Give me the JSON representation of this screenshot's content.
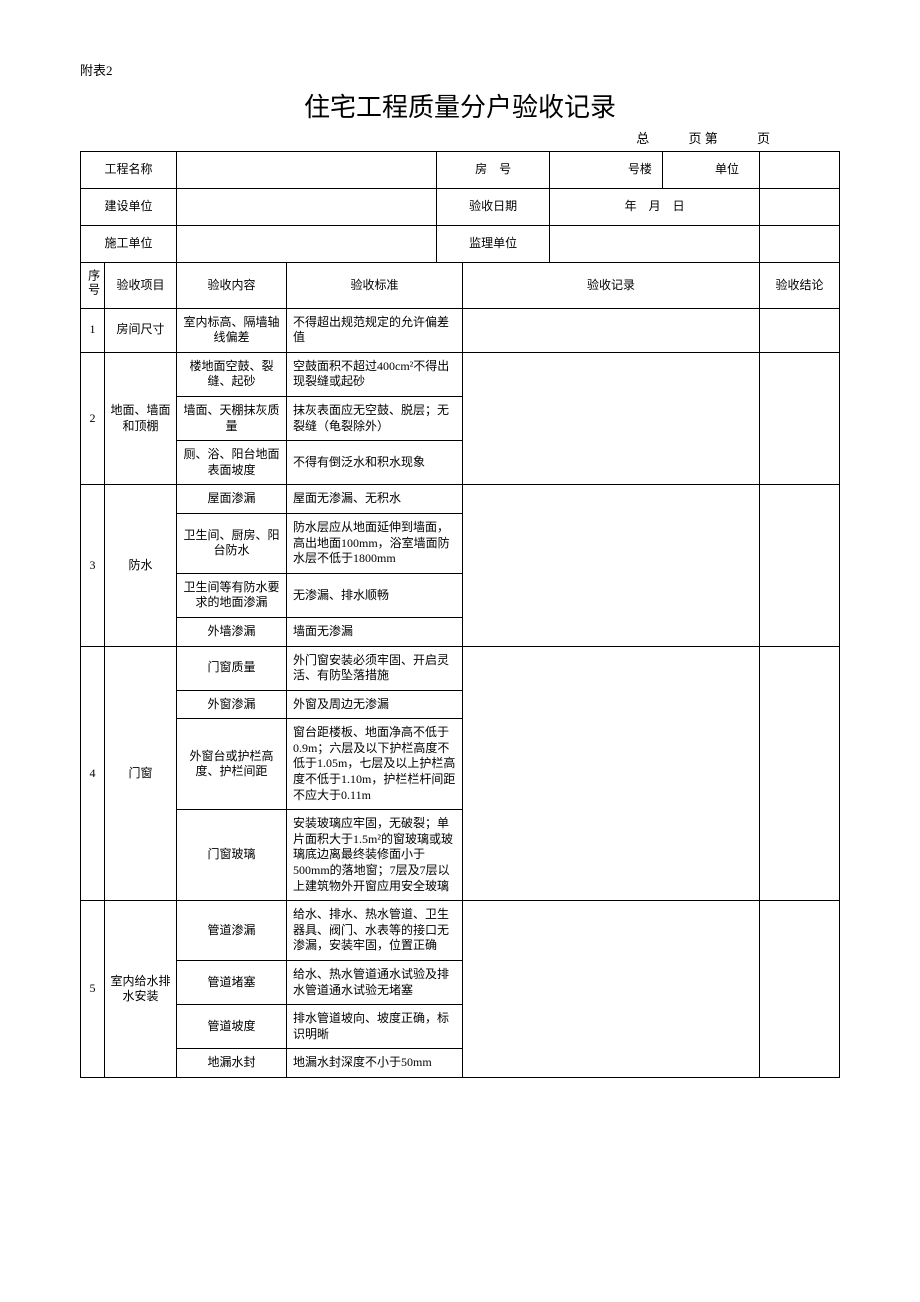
{
  "appendix": "附表2",
  "title": "住宅工程质量分户验收记录",
  "pagination": {
    "total_label": "总",
    "page_label": "页 第",
    "page_suffix": "页"
  },
  "header": {
    "project_name_label": "工程名称",
    "room_no_label": "房　号",
    "building_label": "号楼",
    "unit_label": "单位",
    "builder_label": "建设单位",
    "check_date_label": "验收日期",
    "date_value": "年　月　日",
    "contractor_label": "施工单位",
    "supervisor_label": "监理单位"
  },
  "columns": {
    "seq": "序号",
    "item": "验收项目",
    "content": "验收内容",
    "standard": "验收标准",
    "record": "验收记录",
    "result": "验收结论"
  },
  "rows": [
    {
      "seq": "1",
      "item": "房间尺寸",
      "groups": [
        {
          "content": "室内标高、隔墙轴线偏差",
          "standard": "不得超出规范规定的允许偏差值"
        }
      ]
    },
    {
      "seq": "2",
      "item": "地面、墙面和顶棚",
      "groups": [
        {
          "content": "楼地面空鼓、裂缝、起砂",
          "standard": "空鼓面积不超过400cm²不得出现裂缝或起砂"
        },
        {
          "content": "墙面、天棚抹灰质量",
          "standard": "抹灰表面应无空鼓、脱层；无裂缝（龟裂除外）"
        },
        {
          "content": "厕、浴、阳台地面表面坡度",
          "standard": "不得有倒泛水和积水现象"
        }
      ]
    },
    {
      "seq": "3",
      "item": "防水",
      "groups": [
        {
          "content": "屋面渗漏",
          "standard": "屋面无渗漏、无积水"
        },
        {
          "content": "卫生间、厨房、阳台防水",
          "standard": "防水层应从地面延伸到墙面，高出地面100mm，浴室墙面防水层不低于1800mm"
        },
        {
          "content": "卫生间等有防水要求的地面渗漏",
          "standard": "无渗漏、排水顺畅"
        },
        {
          "content": "外墙渗漏",
          "standard": "墙面无渗漏"
        }
      ]
    },
    {
      "seq": "4",
      "item": "门窗",
      "groups": [
        {
          "content": "门窗质量",
          "standard": "外门窗安装必须牢固、开启灵活、有防坠落措施"
        },
        {
          "content": "外窗渗漏",
          "standard": "外窗及周边无渗漏"
        },
        {
          "content": "外窗台或护栏高度、护栏间距",
          "standard": "窗台距楼板、地面净高不低于0.9m；六层及以下护栏高度不低于1.05m，七层及以上护栏高度不低于1.10m，护栏栏杆间距不应大于0.11m"
        },
        {
          "content": "门窗玻璃",
          "standard": "安装玻璃应牢固，无破裂；单片面积大于1.5m²的窗玻璃或玻璃底边离最终装修面小于500mm的落地窗；7层及7层以上建筑物外开窗应用安全玻璃"
        }
      ]
    },
    {
      "seq": "5",
      "item": "室内给水排水安装",
      "groups": [
        {
          "content": "管道渗漏",
          "standard": "给水、排水、热水管道、卫生器具、阀门、水表等的接口无渗漏，安装牢固，位置正确"
        },
        {
          "content": "管道堵塞",
          "standard": "给水、热水管道通水试验及排水管道通水试验无堵塞"
        },
        {
          "content": "管道坡度",
          "standard": "排水管道坡向、坡度正确，标识明晰"
        },
        {
          "content": "地漏水封",
          "standard": "地漏水封深度不小于50mm"
        }
      ]
    }
  ]
}
